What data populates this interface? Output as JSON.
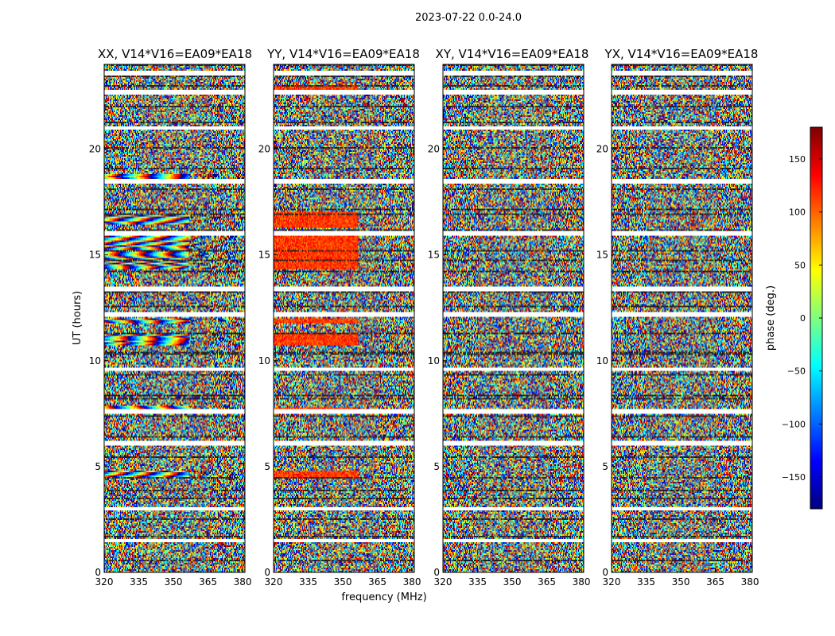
{
  "figure": {
    "suptitle": "2023-07-22 0.0-24.0",
    "xlabel": "frequency (MHz)",
    "ylabel": "UT (hours)"
  },
  "chart_data": {
    "type": "heatmap",
    "x": {
      "label": "frequency (MHz)",
      "lim": [
        320,
        381
      ],
      "ticks": [
        320,
        335,
        350,
        365,
        380
      ]
    },
    "y": {
      "label": "UT (hours)",
      "lim": [
        0,
        24
      ],
      "ticks": [
        0,
        5,
        10,
        15,
        20
      ]
    },
    "colorbar": {
      "label": "phase (deg.)",
      "colormap": "jet",
      "lim": [
        -180,
        180
      ],
      "ticks": [
        -150,
        -100,
        -50,
        0,
        50,
        100,
        150
      ]
    },
    "panels": [
      {
        "title": "XX, V14*V16=EA09*EA18",
        "pol": "XX"
      },
      {
        "title": "YY, V14*V16=EA09*EA18",
        "pol": "YY"
      },
      {
        "title": "XY, V14*V16=EA09*EA18",
        "pol": "XY"
      },
      {
        "title": "YX, V14*V16=EA09*EA18",
        "pol": "YX"
      }
    ],
    "flagged_ut_hours": [
      1.5,
      3.0,
      6.1,
      7.6,
      9.6,
      12.2,
      13.4,
      16.0,
      18.5,
      21.0,
      22.7,
      23.6
    ],
    "coherent_bands": [
      {
        "pol": "XX",
        "ut": [
          4.5,
          4.8
        ]
      },
      {
        "pol": "XX",
        "ut": [
          7.6,
          7.9
        ]
      },
      {
        "pol": "XX",
        "ut": [
          10.7,
          11.3
        ]
      },
      {
        "pol": "XX",
        "ut": [
          11.8,
          12.0
        ]
      },
      {
        "pol": "XX",
        "ut": [
          14.3,
          15.9
        ]
      },
      {
        "pol": "XX",
        "ut": [
          16.4,
          16.9
        ]
      },
      {
        "pol": "XX",
        "ut": [
          18.6,
          18.8
        ]
      },
      {
        "pol": "XX",
        "ut": [
          22.6,
          22.8
        ]
      },
      {
        "pol": "YY",
        "ut": [
          4.4,
          4.8
        ]
      },
      {
        "pol": "YY",
        "ut": [
          7.6,
          7.8
        ]
      },
      {
        "pol": "YY",
        "ut": [
          10.7,
          11.3
        ]
      },
      {
        "pol": "YY",
        "ut": [
          11.8,
          12.0
        ]
      },
      {
        "pol": "YY",
        "ut": [
          14.3,
          15.9
        ]
      },
      {
        "pol": "YY",
        "ut": [
          16.3,
          17.0
        ]
      },
      {
        "pol": "YY",
        "ut": [
          22.8,
          23.0
        ]
      }
    ]
  },
  "colors": {
    "background": "#ffffff",
    "axes": "#000000",
    "flag": "#ffffff"
  }
}
